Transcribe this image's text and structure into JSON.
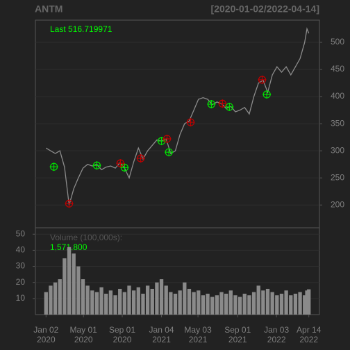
{
  "chart_data": {
    "type": "line",
    "title": "ANTM",
    "subtitle": "[2020-01-02/2022-04-14]",
    "last_label": "Last 516.719971",
    "volume_label": "Volume (100,000s):",
    "volume_last": "1,571,800",
    "x": [
      0,
      10,
      20,
      30,
      40,
      50,
      60,
      70,
      80,
      90,
      100,
      110,
      120,
      130,
      140,
      150,
      160,
      170,
      180,
      190,
      200,
      210,
      220,
      230,
      240,
      250,
      260,
      270,
      280,
      290,
      300,
      310,
      320,
      330,
      340,
      350,
      360,
      370,
      380,
      390,
      400,
      410,
      420,
      430,
      440,
      450,
      460,
      470,
      480,
      490,
      500,
      510,
      520,
      530,
      540,
      550,
      560,
      565,
      569
    ],
    "values": [
      305,
      300,
      295,
      300,
      270,
      200,
      230,
      250,
      268,
      275,
      272,
      275,
      265,
      270,
      272,
      268,
      278,
      268,
      250,
      280,
      305,
      285,
      300,
      310,
      320,
      318,
      322,
      295,
      300,
      330,
      350,
      355,
      375,
      395,
      398,
      395,
      385,
      390,
      387,
      378,
      382,
      372,
      375,
      380,
      368,
      400,
      425,
      430,
      408,
      440,
      455,
      445,
      455,
      440,
      455,
      470,
      500,
      525,
      516.72
    ],
    "color": "#8c8c8c",
    "xlim": [
      -23,
      592
    ],
    "xticks": [
      {
        "value": 0,
        "label": "Jan 02\n2020"
      },
      {
        "value": 81,
        "label": "May 01\n2020"
      },
      {
        "value": 165,
        "label": "Sep 01\n2020"
      },
      {
        "value": 250,
        "label": "Jan 04\n2021"
      },
      {
        "value": 329,
        "label": "May 03\n2021"
      },
      {
        "value": 415,
        "label": "Sep 01\n2021"
      },
      {
        "value": 499,
        "label": "Jan 03\n2022"
      },
      {
        "value": 569,
        "label": "Apr 14\n2022"
      }
    ],
    "ylim": [
      158,
      541
    ],
    "yticks": [
      200,
      250,
      300,
      350,
      400,
      450,
      500
    ],
    "grid": true,
    "markers": [
      {
        "color": "#00e000",
        "x": [
          17,
          110,
          170,
          250,
          266,
          358,
          397,
          478
        ],
        "y": [
          270.5,
          273,
          269,
          318,
          297.4,
          386,
          381,
          404
        ]
      },
      {
        "color": "#c00000",
        "x": [
          50,
          161,
          205,
          262,
          313,
          382,
          468
        ],
        "y": [
          202.6,
          277,
          286,
          322,
          352.6,
          387,
          431
        ]
      }
    ],
    "volume": {
      "values": [
        14,
        18,
        20,
        22,
        35,
        42,
        38,
        30,
        22,
        18,
        15,
        14,
        17,
        13,
        15,
        12,
        16,
        14,
        18,
        15,
        17,
        13,
        18,
        16,
        20,
        22,
        18,
        14,
        13,
        15,
        20,
        16,
        14,
        15,
        12,
        13,
        11,
        12,
        14,
        13,
        15,
        12,
        11,
        13,
        12,
        14,
        18,
        15,
        16,
        14,
        12,
        13,
        15,
        12,
        13,
        14,
        12,
        15,
        15.718
      ],
      "color": "#8a8a8a",
      "ylim": [
        0,
        54
      ],
      "yticks": [
        10,
        20,
        30,
        40,
        50
      ]
    }
  }
}
